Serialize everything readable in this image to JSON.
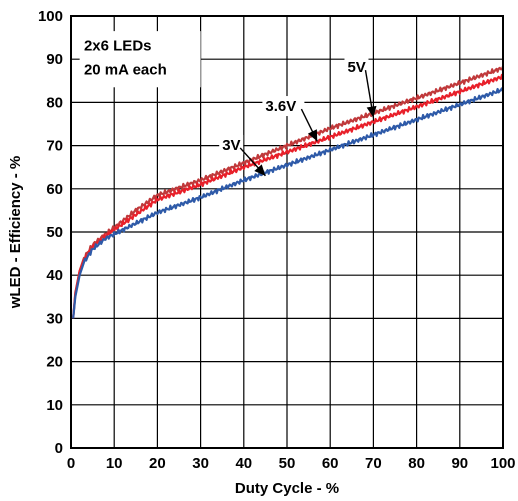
{
  "chart_data": {
    "type": "line",
    "title": "",
    "xlabel": "Duty Cycle - %",
    "ylabel": "wLED - Efficiency - %",
    "xlim": [
      0,
      100
    ],
    "ylim": [
      0,
      100
    ],
    "x_ticks": [
      0,
      10,
      20,
      30,
      40,
      50,
      60,
      70,
      80,
      90,
      100
    ],
    "y_ticks": [
      0,
      10,
      20,
      30,
      40,
      50,
      60,
      70,
      80,
      90,
      100
    ],
    "grid": true,
    "annotation_box": {
      "line1": "2x6 LEDs",
      "line2": "20 mA each"
    },
    "series": [
      {
        "name": "5V",
        "color": "#c0393b",
        "x": [
          0.5,
          1,
          2,
          3,
          5,
          8,
          10,
          15,
          20,
          30,
          40,
          50,
          60,
          70,
          80,
          90,
          100
        ],
        "y": [
          30,
          36,
          41,
          44,
          47,
          49.5,
          51,
          55,
          58.5,
          62,
          66,
          70,
          74,
          77.5,
          81,
          84.5,
          88
        ]
      },
      {
        "name": "3.6V",
        "color": "#e8202a",
        "x": [
          0.5,
          1,
          2,
          3,
          5,
          8,
          10,
          15,
          20,
          30,
          40,
          50,
          60,
          70,
          80,
          90,
          100
        ],
        "y": [
          30,
          35.5,
          41,
          43.5,
          46.5,
          49,
          50.5,
          54,
          57.5,
          61,
          65,
          68.5,
          72,
          75.5,
          79,
          82.5,
          86
        ]
      },
      {
        "name": "3V",
        "color": "#2e5aa8",
        "x": [
          0.5,
          1,
          2,
          3,
          5,
          8,
          10,
          15,
          20,
          30,
          40,
          50,
          60,
          70,
          80,
          90,
          100
        ],
        "y": [
          30,
          35,
          40,
          43,
          46,
          48.5,
          49.5,
          52,
          54.5,
          58,
          62,
          65.5,
          69,
          72.5,
          76,
          79.5,
          83
        ]
      }
    ],
    "curve_labels": [
      {
        "text": "5V",
        "x": 64,
        "y": 87,
        "arrow_to": [
          70,
          76.5
        ]
      },
      {
        "text": "3.6V",
        "x": 45,
        "y": 78,
        "arrow_to": [
          57,
          71
        ]
      },
      {
        "text": "3V",
        "x": 35,
        "y": 69,
        "arrow_to": [
          45,
          63
        ]
      }
    ]
  }
}
